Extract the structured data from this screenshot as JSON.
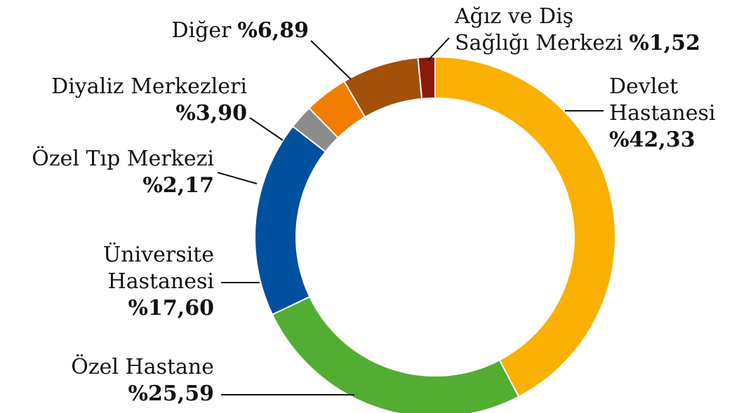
{
  "chart_data": {
    "type": "pie",
    "categories": [
      "Devlet Hastanesi",
      "Özel Hastane",
      "Üniversite Hastanesi",
      "Özel Tıp Merkezi",
      "Diyaliz Merkezleri",
      "Diğer",
      "Ağız ve Diş Sağlığı Merkezi"
    ],
    "values": [
      42.33,
      25.59,
      17.6,
      2.17,
      3.9,
      6.89,
      1.52
    ],
    "value_labels": [
      "%42,33",
      "%25,59",
      "%17,60",
      "%2,17",
      "%3,90",
      "%6,89",
      "%1,52"
    ],
    "colors": [
      "#f9b000",
      "#52ad32",
      "#0050a0",
      "#8c8c8c",
      "#f07d00",
      "#a3500a",
      "#8b1a0a"
    ]
  }
}
